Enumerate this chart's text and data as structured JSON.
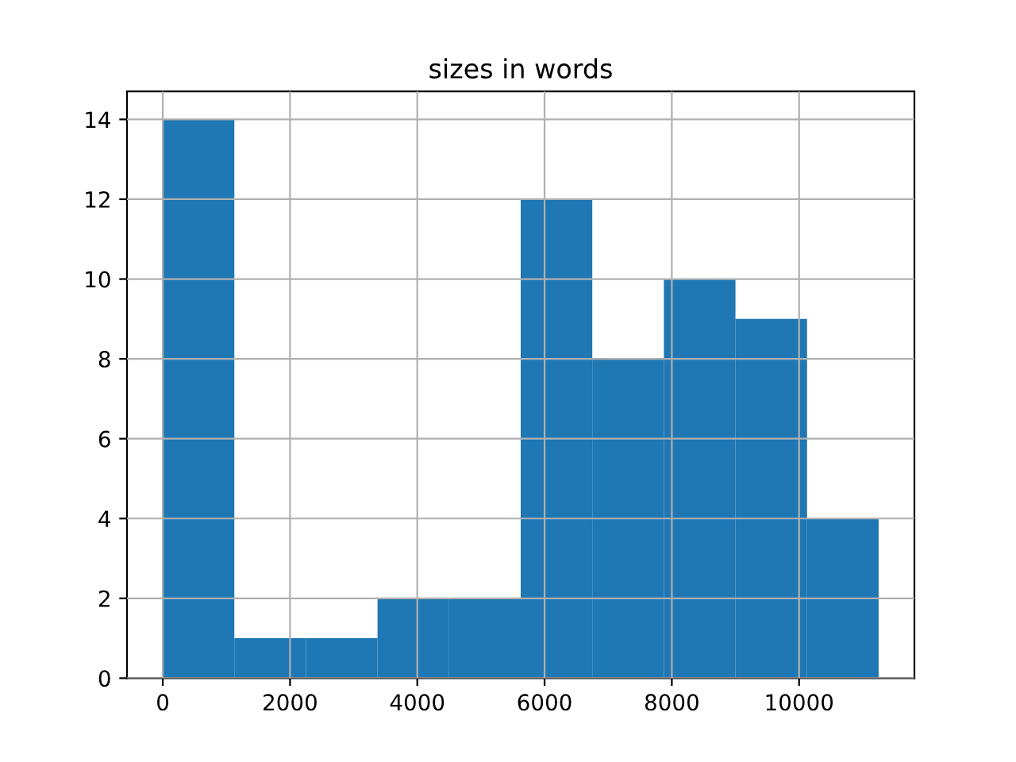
{
  "chart_data": {
    "type": "histogram",
    "title": "sizes in words",
    "bins": [
      0,
      1125,
      2250,
      3375,
      4500,
      5625,
      6750,
      7875,
      9000,
      10125,
      11250
    ],
    "values": [
      14,
      1,
      1,
      2,
      2,
      12,
      8,
      10,
      9,
      4
    ],
    "color": "#1f77b4",
    "xlim": [
      -562,
      11812
    ],
    "xticks": [
      0,
      2000,
      4000,
      6000,
      8000,
      10000
    ],
    "ylim": [
      0,
      14.7
    ],
    "yticks": [
      0,
      2,
      4,
      6,
      8,
      10,
      12,
      14
    ],
    "grid": true
  }
}
